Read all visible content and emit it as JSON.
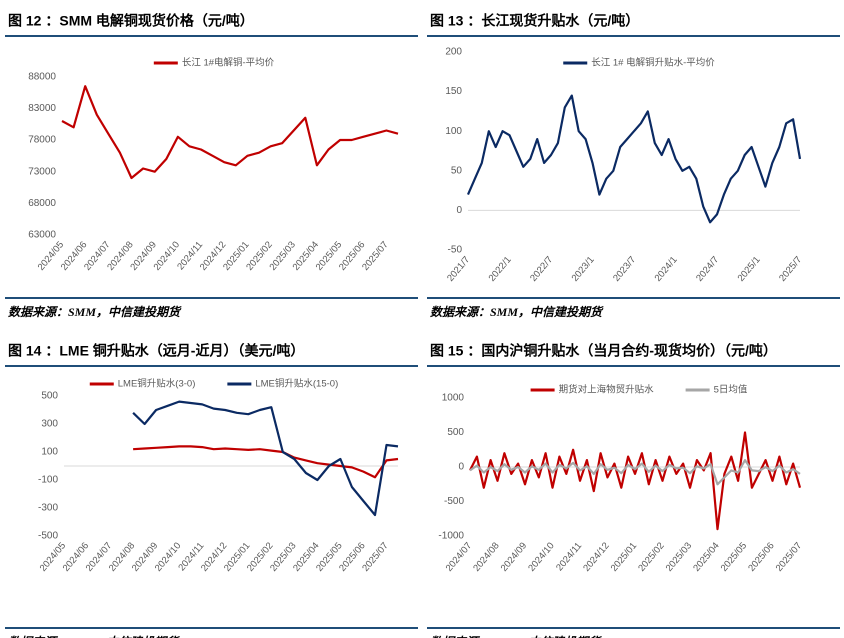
{
  "chart_data": [
    {
      "type": "line",
      "title": "图 12 ：SMM 电解铜现货价格（元/吨）",
      "source": "数据来源：SMM，中信建投期货",
      "categories": [
        "2024/05",
        null,
        "2024/06",
        null,
        "2024/07",
        null,
        "2024/08",
        null,
        "2024/09",
        null,
        "2024/10",
        null,
        "2024/11",
        null,
        "2024/12",
        null,
        "2025/01",
        null,
        "2025/02",
        null,
        "2025/03",
        null,
        "2025/04",
        null,
        "2025/05",
        null,
        "2025/06",
        null,
        "2025/07",
        null
      ],
      "series": [
        {
          "name": "长江 1#电解铜-平均价",
          "color": "#c00000",
          "values": [
            81000,
            80000,
            86500,
            82000,
            79000,
            76000,
            72000,
            73500,
            73000,
            75000,
            78500,
            77000,
            76500,
            75500,
            74500,
            74000,
            75500,
            76000,
            77000,
            77500,
            79500,
            81500,
            74000,
            76500,
            78000,
            78000,
            78500,
            79000,
            79500,
            79000
          ]
        }
      ],
      "ylim": [
        63000,
        90000
      ],
      "yticks": [
        63000,
        68000,
        73000,
        78000,
        83000,
        88000
      ],
      "zero_line": false
    },
    {
      "type": "line",
      "title": "图 13 ：长江现货升贴水（元/吨）",
      "source": "数据来源：SMM，中信建投期货",
      "categories": [
        "2021/7",
        null,
        null,
        null,
        null,
        null,
        "2022/1",
        null,
        null,
        null,
        null,
        null,
        "2022/7",
        null,
        null,
        null,
        null,
        null,
        "2023/1",
        null,
        null,
        null,
        null,
        null,
        "2023/7",
        null,
        null,
        null,
        null,
        null,
        "2024/1",
        null,
        null,
        null,
        null,
        null,
        "2024/7",
        null,
        null,
        null,
        null,
        null,
        "2025/1",
        null,
        null,
        null,
        null,
        null,
        "2025/7"
      ],
      "series": [
        {
          "name": "长江 1# 电解铜升贴水-平均价",
          "color": "#0b2a63",
          "values": [
            20,
            40,
            60,
            100,
            80,
            100,
            95,
            75,
            55,
            65,
            90,
            60,
            70,
            85,
            130,
            145,
            100,
            90,
            60,
            20,
            40,
            50,
            80,
            90,
            100,
            110,
            125,
            85,
            70,
            90,
            65,
            50,
            55,
            40,
            5,
            -15,
            -5,
            20,
            40,
            50,
            70,
            80,
            55,
            30,
            60,
            80,
            110,
            115,
            65
          ]
        }
      ],
      "ylim": [
        -50,
        200
      ],
      "yticks": [
        -50,
        0,
        50,
        100,
        150,
        200
      ],
      "zero_line": true
    },
    {
      "type": "line",
      "title": "图 14 ：LME 铜升贴水（远月-近月）（美元/吨）",
      "source": "数据来源：Wind，中信建投期货",
      "categories": [
        "2024/05",
        null,
        "2024/06",
        null,
        "2024/07",
        null,
        "2024/08",
        null,
        "2024/09",
        null,
        "2024/10",
        null,
        "2024/11",
        null,
        "2024/12",
        null,
        "2025/01",
        null,
        "2025/02",
        null,
        "2025/03",
        null,
        "2025/04",
        null,
        "2025/05",
        null,
        "2025/06",
        null,
        "2025/07",
        null
      ],
      "series": [
        {
          "name": "LME铜升贴水(3-0)",
          "color": "#c00000",
          "values": [
            null,
            null,
            null,
            null,
            null,
            null,
            120,
            125,
            130,
            135,
            140,
            140,
            135,
            120,
            125,
            120,
            115,
            120,
            110,
            100,
            60,
            40,
            20,
            10,
            0,
            -10,
            -40,
            -80,
            40,
            50
          ]
        },
        {
          "name": "LME铜升贴水(15-0)",
          "color": "#0b2a63",
          "values": [
            null,
            null,
            null,
            null,
            null,
            null,
            380,
            300,
            400,
            430,
            460,
            450,
            440,
            410,
            400,
            380,
            370,
            400,
            420,
            100,
            50,
            -50,
            -100,
            0,
            50,
            -150,
            -250,
            -350,
            150,
            140
          ]
        }
      ],
      "ylim": [
        -500,
        600
      ],
      "yticks": [
        -500,
        -300,
        -100,
        100,
        300,
        500
      ],
      "zero_line": true
    },
    {
      "type": "line",
      "title": "图 15 ：国内沪铜升贴水（当月合约-现货均价）（元/吨）",
      "source": "数据来源：Wind，中信建投期货",
      "categories": [
        "2024/07",
        null,
        null,
        null,
        "2024/08",
        null,
        null,
        null,
        "2024/09",
        null,
        null,
        null,
        "2024/10",
        null,
        null,
        null,
        "2024/11",
        null,
        null,
        null,
        "2024/12",
        null,
        null,
        null,
        "2025/01",
        null,
        null,
        null,
        "2025/02",
        null,
        null,
        null,
        "2025/03",
        null,
        null,
        null,
        "2025/04",
        null,
        null,
        null,
        "2025/05",
        null,
        null,
        null,
        "2025/06",
        null,
        null,
        null,
        "2025/07"
      ],
      "series": [
        {
          "name": "期货对上海物贸升贴水",
          "color": "#c00000",
          "values": [
            -50,
            150,
            -300,
            100,
            -200,
            200,
            -100,
            50,
            -250,
            100,
            -150,
            200,
            -300,
            150,
            -100,
            250,
            -200,
            100,
            -350,
            200,
            -150,
            50,
            -300,
            150,
            -100,
            200,
            -250,
            100,
            -200,
            150,
            -100,
            50,
            -300,
            100,
            -50,
            200,
            -900,
            -100,
            150,
            -200,
            500,
            -300,
            -100,
            100,
            -200,
            150,
            -250,
            50,
            -300
          ]
        },
        {
          "name": "5日均值",
          "color": "#a6a6a6",
          "values": [
            -50,
            20,
            -80,
            0,
            -60,
            40,
            -40,
            0,
            -80,
            10,
            -40,
            50,
            -80,
            30,
            -20,
            60,
            -50,
            10,
            -100,
            40,
            -40,
            -10,
            -90,
            30,
            -30,
            50,
            -70,
            20,
            -60,
            30,
            -20,
            -10,
            -90,
            10,
            -20,
            40,
            -250,
            -150,
            -50,
            -80,
            100,
            -50,
            -60,
            0,
            -60,
            20,
            -80,
            -30,
            -100
          ]
        }
      ],
      "ylim": [
        -1000,
        1000
      ],
      "yticks": [
        -1000,
        -500,
        0,
        500,
        1000
      ],
      "zero_line": true
    }
  ]
}
